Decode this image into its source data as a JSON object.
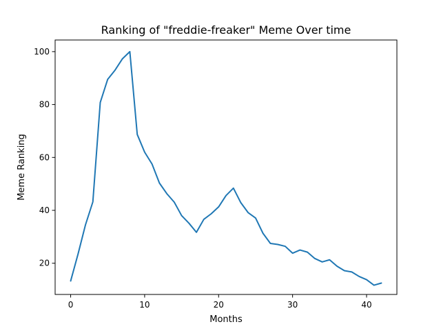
{
  "chart_data": {
    "type": "line",
    "title": "Ranking of \"freddie-freaker\" Meme Over time",
    "xlabel": "Months",
    "ylabel": "Meme Ranking",
    "xlim": [
      -2.1,
      44.1
    ],
    "ylim": [
      8.2,
      104.4
    ],
    "xticks": [
      0,
      10,
      20,
      30,
      40
    ],
    "yticks": [
      20,
      40,
      60,
      80,
      100
    ],
    "grid": false,
    "color": "#1f77b4",
    "series": [
      {
        "x": [
          0,
          1,
          2,
          3,
          4,
          5,
          6,
          7,
          8,
          9,
          10,
          11,
          12,
          13,
          14,
          15,
          16,
          17,
          18,
          19,
          20,
          21,
          22,
          23,
          24,
          25,
          26,
          27,
          28,
          29,
          30,
          31,
          32,
          33,
          34,
          35,
          36,
          37,
          38,
          39,
          40,
          41,
          42
        ],
        "values": [
          13.3,
          23.5,
          34.5,
          43.2,
          80.8,
          89.5,
          93.0,
          97.3,
          100.0,
          68.7,
          62.0,
          57.5,
          50.3,
          46.3,
          43.1,
          38.0,
          35.1,
          31.7,
          36.6,
          38.7,
          41.3,
          45.6,
          48.4,
          42.9,
          39.1,
          37.1,
          31.3,
          27.5,
          27.1,
          26.4,
          23.8,
          25.0,
          24.2,
          21.8,
          20.5,
          21.3,
          18.9,
          17.2,
          16.7,
          15.0,
          13.8,
          11.7,
          12.5
        ]
      }
    ]
  }
}
